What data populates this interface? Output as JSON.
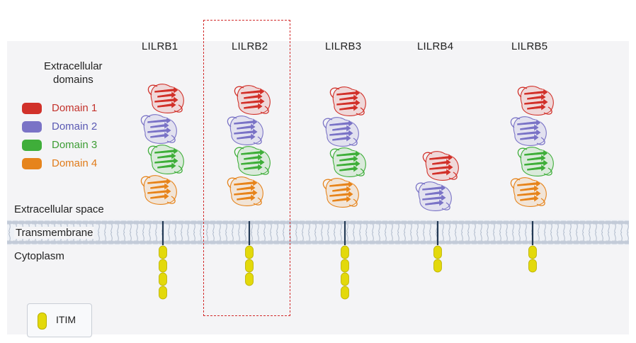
{
  "receptors": [
    {
      "name": "LILRB1",
      "domains": 4,
      "itims": 4
    },
    {
      "name": "LILRB2",
      "domains": 4,
      "itims": 3
    },
    {
      "name": "LILRB3",
      "domains": 4,
      "itims": 4
    },
    {
      "name": "LILRB4",
      "domains": 2,
      "itims": 2
    },
    {
      "name": "LILRB5",
      "domains": 4,
      "itims": 2
    }
  ],
  "legend": {
    "title_line1": "Extracellular",
    "title_line2": "domains",
    "items": [
      {
        "label": "Domain 1",
        "color": "#d1312a"
      },
      {
        "label": "Domain 2",
        "color": "#7a73c6"
      },
      {
        "label": "Domain 3",
        "color": "#3fae3a"
      },
      {
        "label": "Domain 4",
        "color": "#e6841c"
      }
    ]
  },
  "regions": {
    "extracellular": "Extracellular space",
    "transmembrane": "Transmembrane",
    "cytoplasm": "Cytoplasm"
  },
  "itim_legend": {
    "label": "ITIM",
    "color": "#e3d90b"
  },
  "highlighted_receptor": "LILRB2",
  "colors": {
    "membrane_line": "#a9b4c6",
    "membrane_head": "#c3cbd8",
    "stem": "#233a55",
    "highlight": "#d22b2b"
  }
}
